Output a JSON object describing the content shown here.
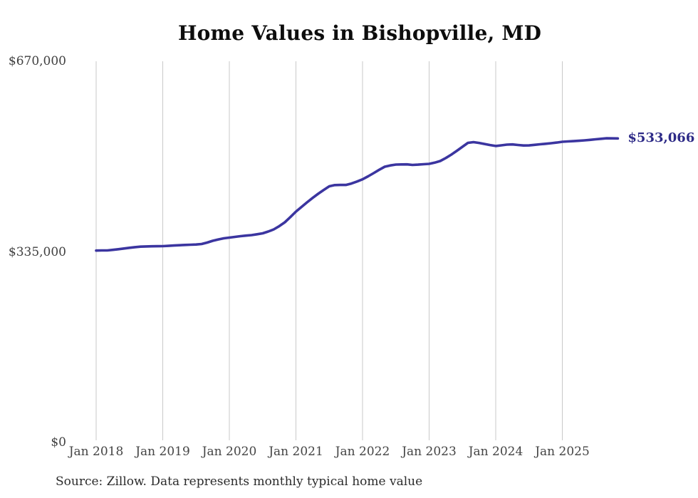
{
  "chart_data": {
    "type": "line",
    "title": "Home Values in Bishopville, MD",
    "series_name": "Monthly typical home value",
    "x_start": "2018-01",
    "x_freq": "monthly",
    "x_tick_labels": [
      "Jan 2018",
      "Jan 2019",
      "Jan 2020",
      "Jan 2021",
      "Jan 2022",
      "Jan 2023",
      "Jan 2024",
      "Jan 2025"
    ],
    "y_ticks": [
      {
        "label": "$670,000",
        "value": 670000
      },
      {
        "label": "$335,000",
        "value": 335000
      },
      {
        "label": "$0",
        "value": 0
      }
    ],
    "ylim": [
      0,
      670000
    ],
    "grid": "vertical-only",
    "legend": "none",
    "line_color": "#3b35a0",
    "end_label": "$533,066",
    "end_value": 533066,
    "values": [
      336000,
      336200,
      336300,
      337200,
      338400,
      339600,
      340900,
      342000,
      342900,
      343300,
      343500,
      343700,
      343800,
      344300,
      344900,
      345400,
      345900,
      346300,
      346600,
      347500,
      350000,
      353100,
      355600,
      357500,
      358800,
      360100,
      361300,
      362300,
      363200,
      364700,
      366300,
      369500,
      373200,
      379000,
      385700,
      394800,
      404500,
      412700,
      420800,
      428500,
      435800,
      442600,
      448900,
      451100,
      451400,
      451400,
      453900,
      457400,
      461200,
      466500,
      472100,
      478000,
      483400,
      485600,
      487100,
      487400,
      487500,
      486500,
      487000,
      487800,
      488400,
      490500,
      493400,
      498700,
      504700,
      511500,
      518500,
      525400,
      526600,
      525200,
      523400,
      521500,
      519900,
      521000,
      522200,
      522600,
      521600,
      520700,
      520900,
      521800,
      522800,
      523700,
      524700,
      525900,
      527200,
      527800,
      528400,
      529000,
      529700,
      530600,
      531600,
      532500,
      533400,
      533200,
      533066
    ],
    "source_note": "Source: Zillow. Data represents monthly typical home value"
  }
}
